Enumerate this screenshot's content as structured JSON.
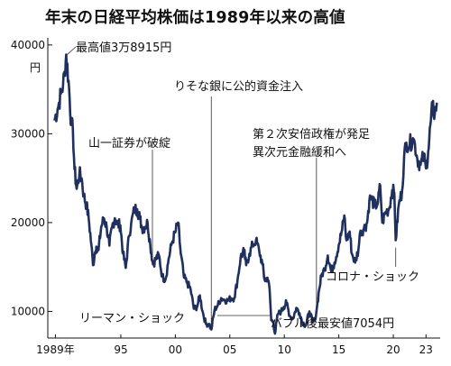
{
  "title": "年末の日経平均株価は1989年以来の高値",
  "colors": {
    "line": "#1f2f5e",
    "axis": "#111111",
    "leader": "#333333",
    "text": "#111111"
  },
  "chart_data": {
    "type": "line",
    "title": "年末の日経平均株価は1989年以来の高値",
    "xlabel": "",
    "ylabel": "",
    "y_unit": "円",
    "xlim": [
      1988.3,
      2024.3
    ],
    "ylim": [
      7000,
      41000
    ],
    "x_ticks": [
      {
        "value": 1989,
        "label": "1989年"
      },
      {
        "value": 1995,
        "label": "95"
      },
      {
        "value": 2000,
        "label": "00"
      },
      {
        "value": 2005,
        "label": "05"
      },
      {
        "value": 2010,
        "label": "10"
      },
      {
        "value": 2015,
        "label": "15"
      },
      {
        "value": 2020,
        "label": "20"
      },
      {
        "value": 2023,
        "label": "23"
      }
    ],
    "y_ticks": [
      {
        "value": 10000,
        "label": "10000"
      },
      {
        "value": 20000,
        "label": "20000"
      },
      {
        "value": 30000,
        "label": "30000"
      },
      {
        "value": 40000,
        "label": "40000"
      }
    ],
    "grid": false,
    "series": [
      {
        "x": [
          1988.9,
          1989.2,
          1989.5,
          1989.7,
          1989.85,
          1989.99,
          1990.2,
          1990.45,
          1990.6,
          1990.75,
          1990.95,
          1991.2,
          1991.4,
          1991.6,
          1991.85,
          1992.05,
          1992.3,
          1992.45,
          1992.6,
          1992.75,
          1992.95,
          1993.2,
          1993.45,
          1993.7,
          1993.95,
          1994.2,
          1994.45,
          1994.7,
          1994.95,
          1995.2,
          1995.45,
          1995.75,
          1995.95,
          1996.25,
          1996.5,
          1996.75,
          1996.95,
          1997.2,
          1997.45,
          1997.7,
          1997.95,
          1998.25,
          1998.5,
          1998.8,
          1999.1,
          1999.4,
          1999.7,
          1999.99,
          2000.25,
          2000.5,
          2000.8,
          2001.1,
          2001.4,
          2001.7,
          2001.99,
          2002.25,
          2002.5,
          2002.8,
          2003.1,
          2003.3,
          2003.6,
          2003.9,
          2004.2,
          2004.5,
          2004.8,
          2005.1,
          2005.4,
          2005.7,
          2005.99,
          2006.3,
          2006.5,
          2006.8,
          2007.1,
          2007.4,
          2007.7,
          2007.99,
          2008.2,
          2008.45,
          2008.65,
          2008.8,
          2008.99,
          2009.15,
          2009.4,
          2009.7,
          2009.95,
          2010.2,
          2010.5,
          2010.8,
          2011.1,
          2011.4,
          2011.7,
          2011.99,
          2012.3,
          2012.6,
          2012.8,
          2012.99,
          2013.2,
          2013.4,
          2013.7,
          2013.99,
          2014.3,
          2014.6,
          2014.99,
          2015.3,
          2015.5,
          2015.7,
          2015.99,
          2016.2,
          2016.5,
          2016.8,
          2016.99,
          2017.3,
          2017.6,
          2017.8,
          2017.99,
          2018.3,
          2018.6,
          2018.8,
          2018.99,
          2019.3,
          2019.6,
          2019.9,
          2020.1,
          2020.22,
          2020.5,
          2020.8,
          2020.99,
          2021.2,
          2021.5,
          2021.8,
          2021.99,
          2022.2,
          2022.5,
          2022.8,
          2022.99,
          2023.2,
          2023.45,
          2023.6,
          2023.8,
          2023.99
        ],
        "y": [
          31500,
          32800,
          34500,
          35500,
          37000,
          38915,
          36000,
          31000,
          30500,
          26000,
          23800,
          25500,
          25000,
          23000,
          22000,
          20500,
          17500,
          15200,
          16500,
          17300,
          16900,
          19500,
          20500,
          19500,
          17400,
          19500,
          20500,
          19800,
          19700,
          16500,
          14900,
          18500,
          19900,
          21500,
          21500,
          20500,
          19400,
          19500,
          20000,
          17500,
          15300,
          16000,
          16300,
          13900,
          13600,
          16000,
          17800,
          18900,
          20000,
          16500,
          13800,
          13200,
          12500,
          10300,
          10500,
          11800,
          10000,
          8600,
          8600,
          7950,
          10200,
          10700,
          11500,
          11300,
          11200,
          11500,
          11500,
          13500,
          16100,
          16800,
          15200,
          16500,
          17500,
          18000,
          16800,
          15300,
          13500,
          13800,
          12500,
          9000,
          8860,
          7500,
          9700,
          10000,
          10500,
          11000,
          9500,
          9200,
          10400,
          9800,
          8700,
          8450,
          10000,
          8800,
          9000,
          10400,
          12500,
          14000,
          14800,
          16300,
          14500,
          15500,
          17450,
          19200,
          20800,
          18000,
          19000,
          16500,
          15500,
          17000,
          19100,
          19300,
          20000,
          22500,
          22800,
          21800,
          22300,
          24200,
          20000,
          21200,
          21500,
          23650,
          23300,
          18000,
          22000,
          23500,
          27400,
          29000,
          28800,
          29500,
          28800,
          27200,
          26500,
          27500,
          26100,
          28000,
          31500,
          33000,
          32200,
          33500
        ]
      }
    ],
    "annotations": [
      {
        "label": "最高値3万8915円",
        "x": 1989.99,
        "y": 38915
      },
      {
        "label": "りそな銀に公的資金注入",
        "x": 2003.3,
        "y": 7950
      },
      {
        "label": "山一証券が破綻",
        "x": 1997.9,
        "y": 16000
      },
      {
        "label": "第２次安倍政権が発足",
        "x": 2012.95,
        "y": 10400
      },
      {
        "label": "異次元金融緩和へ",
        "x": 2013.3,
        "y": 12500
      },
      {
        "label": "コロナ・ショック",
        "x": 2020.22,
        "y": 18000
      },
      {
        "label": "リーマン・ショック",
        "x": 2008.85,
        "y": 8860
      },
      {
        "label": "バブル後最安値7054円",
        "x": 2009.2,
        "y": 7054
      }
    ]
  }
}
